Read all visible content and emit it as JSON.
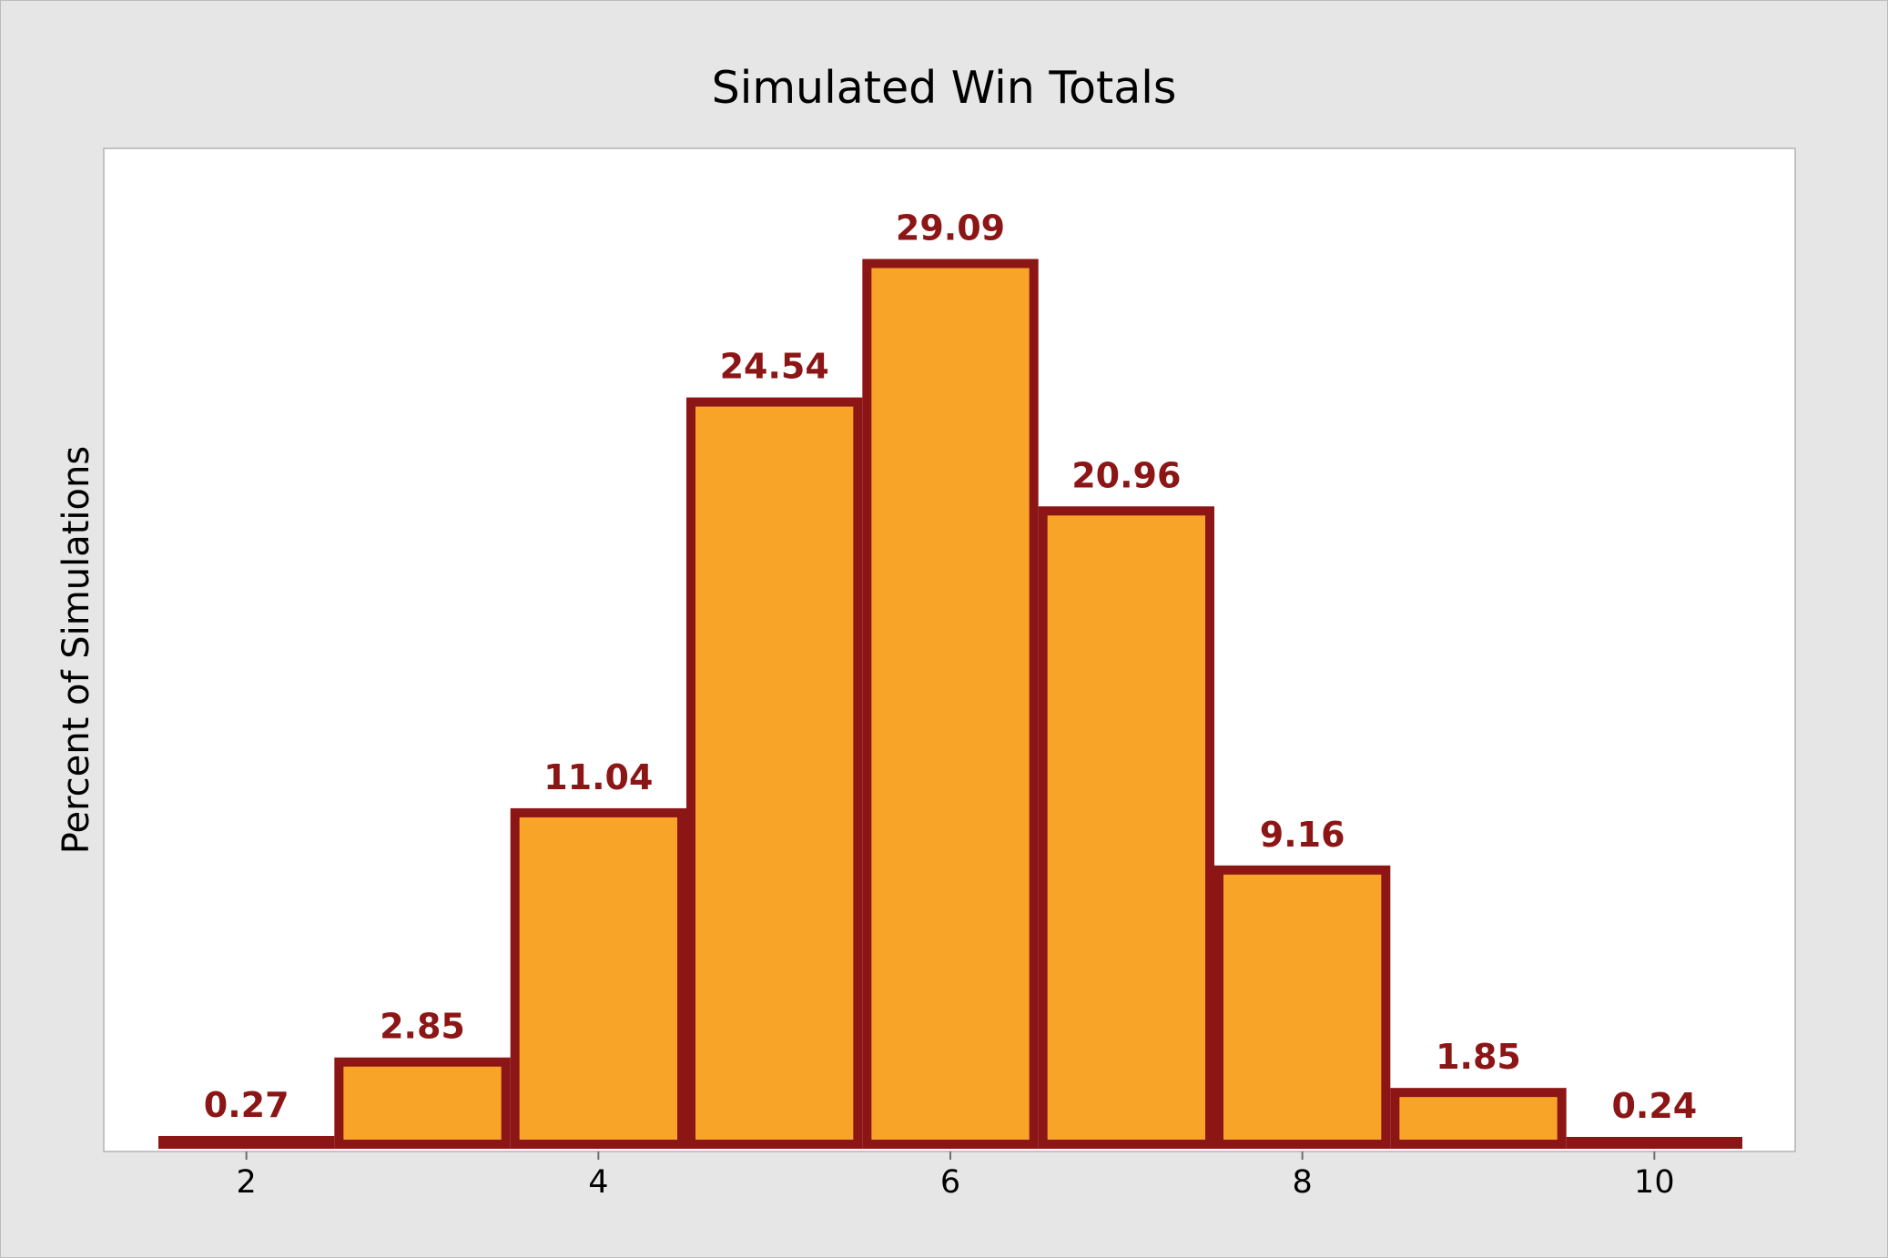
{
  "chart_data": {
    "type": "bar",
    "title": "Simulated Win Totals",
    "xlabel": "",
    "ylabel": "Percent of Simulations",
    "x": [
      2,
      3,
      4,
      5,
      6,
      7,
      8,
      9,
      10
    ],
    "values": [
      0.27,
      2.85,
      11.04,
      24.54,
      29.09,
      20.96,
      9.16,
      1.85,
      0.24
    ],
    "data_labels": [
      "0.27",
      "2.85",
      "11.04",
      "24.54",
      "29.09",
      "20.96",
      "9.16",
      "1.85",
      "0.24"
    ],
    "x_ticks": [
      2,
      4,
      6,
      8,
      10
    ],
    "x_tick_labels": [
      "2",
      "4",
      "6",
      "8",
      "10"
    ],
    "xlim": [
      1.5,
      10.5
    ],
    "ylim": [
      0,
      30.9
    ],
    "y_tick_labels_shown": false,
    "grid": false,
    "legend": "none",
    "colors": {
      "bar_fill": "#f7a429",
      "bar_edge": "#8c1515",
      "data_label": "#8c1515",
      "plot_background": "#ffffff",
      "figure_background": "#e6e6e6"
    }
  }
}
